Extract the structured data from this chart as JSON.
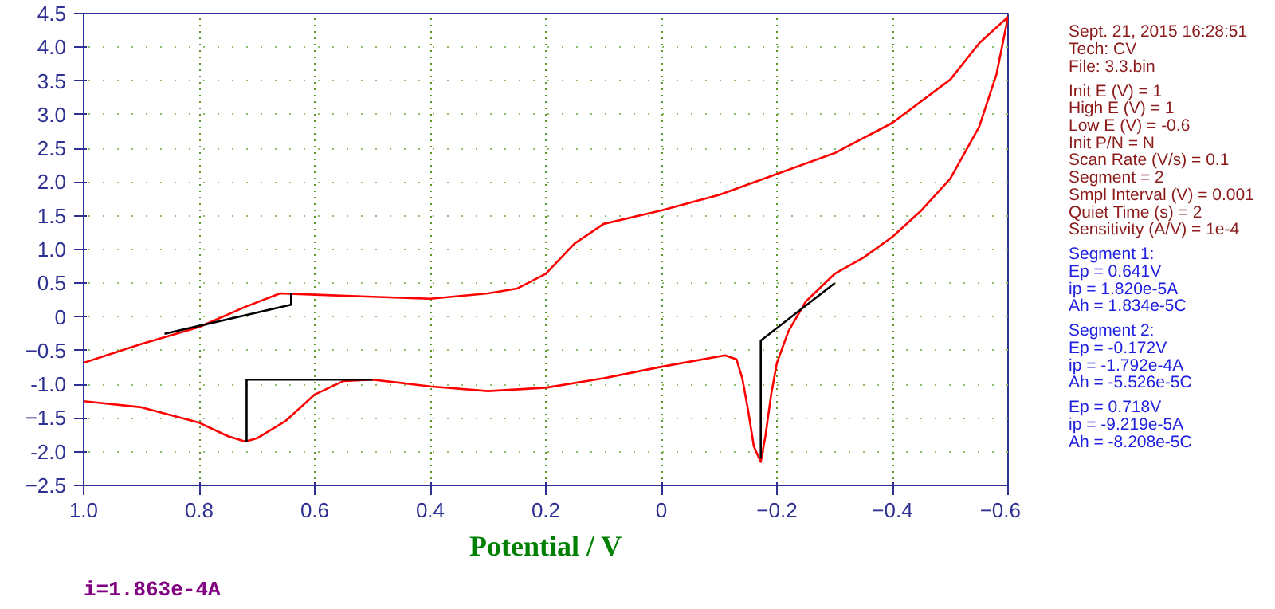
{
  "chart_data": {
    "type": "line",
    "xlabel": "Potential / V",
    "xlim": [
      1.0,
      -0.6
    ],
    "ylim": [
      -2.5,
      4.5
    ],
    "xticks": [
      {
        "value": 1,
        "label": "1.0"
      },
      0.8,
      0.6,
      0.4,
      0.2,
      0,
      -0.2,
      -0.4,
      -0.6
    ],
    "yticks": [
      4.5,
      {
        "value": 4,
        "label": "4.0"
      },
      3.5,
      {
        "value": 3,
        "label": "3.0"
      },
      2.5,
      {
        "value": 2,
        "label": "2.0"
      },
      1.5,
      {
        "value": 1,
        "label": "1.0"
      },
      0.5,
      0,
      -0.5,
      {
        "value": -1,
        "label": "-1.0"
      },
      -1.5,
      {
        "value": -2,
        "label": "-2.0"
      },
      -2.5
    ],
    "grid": true,
    "line_style": "solid",
    "marker": "none",
    "series": [
      {
        "color": "#ff0000",
        "x": [
          1.0,
          0.95,
          0.9,
          0.8,
          0.72,
          0.66,
          0.6,
          0.5,
          0.4,
          0.3,
          0.25,
          0.2,
          0.15,
          0.1,
          0,
          -0.1,
          -0.2,
          -0.3,
          -0.4,
          -0.5,
          -0.55,
          -0.6,
          -0.58,
          -0.55,
          -0.5,
          -0.45,
          -0.4,
          -0.35,
          -0.3,
          -0.25,
          -0.22,
          -0.2,
          -0.19,
          -0.18,
          -0.172,
          -0.16,
          -0.15,
          -0.14,
          -0.13,
          -0.11,
          0,
          0.1,
          0.2,
          0.3,
          0.4,
          0.5,
          0.55,
          0.6,
          0.65,
          0.7,
          0.72,
          0.75,
          0.8,
          0.9,
          1.0
        ],
        "values": [
          -0.68,
          -0.54,
          -0.4,
          -0.15,
          0.15,
          0.35,
          0.33,
          0.3,
          0.27,
          0.35,
          0.42,
          0.64,
          1.09,
          1.38,
          1.58,
          1.81,
          2.12,
          2.43,
          2.88,
          3.52,
          4.06,
          4.45,
          3.6,
          2.82,
          2.05,
          1.58,
          1.19,
          0.88,
          0.64,
          0.23,
          -0.21,
          -0.68,
          -1.15,
          -1.77,
          -2.15,
          -1.92,
          -1.38,
          -0.91,
          -0.63,
          -0.57,
          -0.74,
          -0.91,
          -1.05,
          -1.1,
          -1.03,
          -0.93,
          -0.95,
          -1.15,
          -1.54,
          -1.8,
          -1.85,
          -1.77,
          -1.57,
          -1.34,
          -1.25
        ]
      },
      {
        "color": "#000000",
        "x": [
          0.86,
          0.641,
          0.641
        ],
        "values": [
          -0.25,
          0.18,
          0.36
        ]
      },
      {
        "color": "#000000",
        "x": [
          -0.3,
          -0.172,
          -0.172
        ],
        "values": [
          0.5,
          -0.35,
          -2.1
        ]
      },
      {
        "color": "#000000",
        "x": [
          0.5,
          0.718,
          0.718
        ],
        "values": [
          -0.93,
          -0.93,
          -1.85
        ]
      }
    ],
    "annotations": [
      "Sept. 21, 2015   16:28:51",
      "Tech: CV",
      "File: 3.3.bin",
      "Init E (V) = 1",
      "High E (V) = 1",
      "Low E (V) = -0.6",
      "Init P/N = N",
      "Scan Rate (V/s) = 0.1",
      "Segment = 2",
      "Smpl Interval (V) = 0.001",
      "Quiet Time (s) = 2",
      "Sensitivity (A/V) = 1e-4",
      "Segment 1:",
      "Ep = 0.641V",
      "ip = 1.820e-5A",
      "Ah = 1.834e-5C",
      "Segment 2:",
      "Ep = -0.172V",
      "ip = -1.792e-4A",
      "Ah = -5.526e-5C",
      "Ep = 0.718V",
      "ip = -9.219e-5A",
      "Ah = -8.208e-5C",
      "i=1.863e-4A"
    ]
  }
}
